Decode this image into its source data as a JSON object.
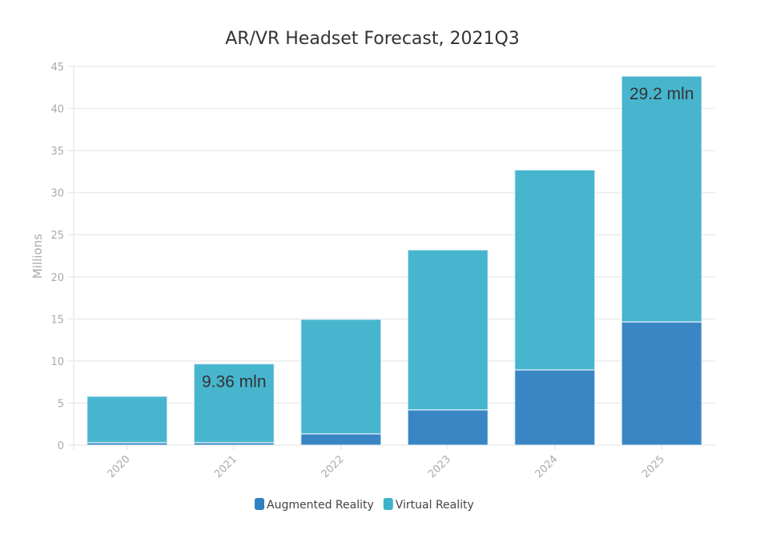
{
  "chart_data": {
    "type": "bar",
    "stacked": true,
    "title": "AR/VR Headset Forecast, 2021Q3",
    "xlabel": "",
    "ylabel": "Millions",
    "ylim": [
      0,
      45
    ],
    "yticks": [
      0,
      5,
      10,
      15,
      20,
      25,
      30,
      35,
      40,
      45
    ],
    "grid": true,
    "legend_position": "bottom-center",
    "categories": [
      "2020",
      "2021",
      "2022",
      "2023",
      "2024",
      "2025"
    ],
    "series": [
      {
        "name": "Augmented Reality",
        "color": "#2f7fc1",
        "values": [
          0.3,
          0.3,
          1.35,
          4.2,
          8.95,
          14.65
        ]
      },
      {
        "name": "Virtual Reality",
        "color": "#3db1cb",
        "values": [
          5.5,
          9.36,
          13.6,
          19.0,
          23.75,
          29.2
        ]
      }
    ],
    "annotations": [
      {
        "category": "2021",
        "series": "Virtual Reality",
        "text": "9.36 mln"
      },
      {
        "category": "2025",
        "series": "Virtual Reality",
        "text": "29.2 mln"
      }
    ]
  }
}
